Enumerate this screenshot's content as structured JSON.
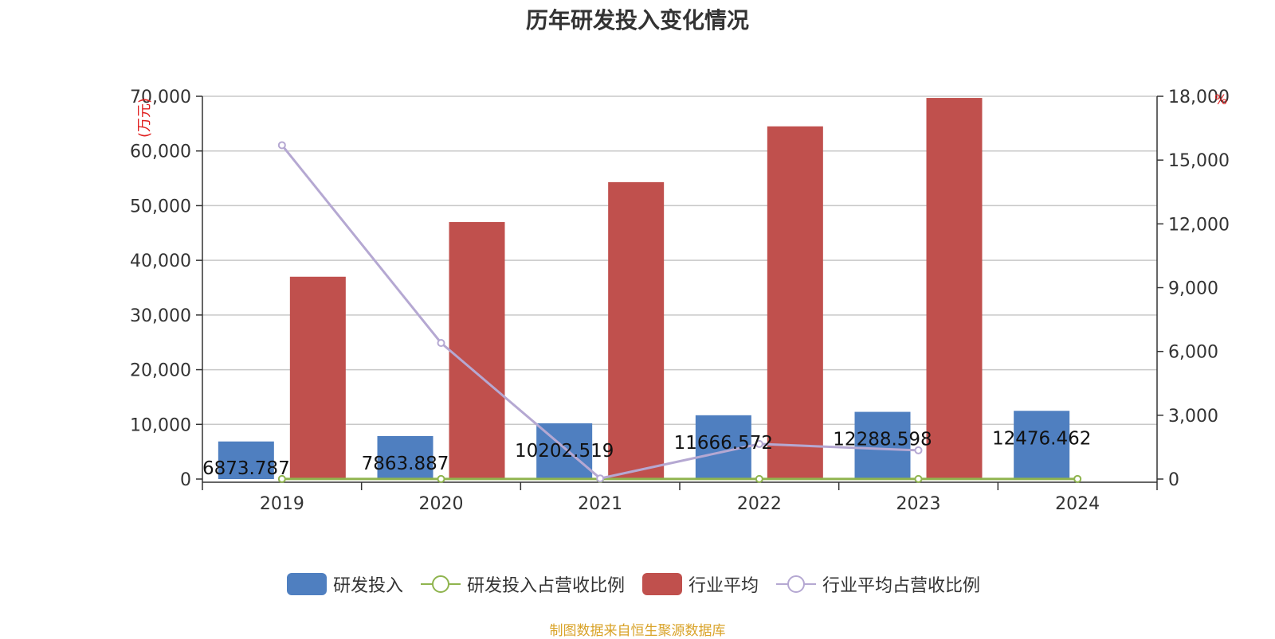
{
  "title": "历年研发投入变化情况",
  "source": "制图数据来自恒生聚源数据库",
  "colors": {
    "rd_investment": "#4f7fc0",
    "rd_ratio": "#8fb44e",
    "industry_avg": "#c0504d",
    "industry_ratio": "#b5a8d2",
    "source_text": "#d9a329"
  },
  "legend": [
    {
      "label": "研发投入",
      "type": "bar",
      "color": "#4f7fc0"
    },
    {
      "label": "研发投入占营收比例",
      "type": "line",
      "color": "#8fb44e"
    },
    {
      "label": "行业平均",
      "type": "bar",
      "color": "#c0504d"
    },
    {
      "label": "行业平均占营收比例",
      "type": "line",
      "color": "#b5a8d2"
    }
  ],
  "chart_data": {
    "type": "bar",
    "categories": [
      "2019",
      "2020",
      "2021",
      "2022",
      "2023",
      "2024"
    ],
    "left_axis": {
      "unit_label": "(万元)",
      "ylim": [
        0,
        70000
      ],
      "ticks": [
        "0",
        "10,000",
        "20,000",
        "30,000",
        "40,000",
        "50,000",
        "60,000",
        "70,000"
      ]
    },
    "right_axis": {
      "unit_label": "%",
      "ylim": [
        0,
        18000
      ],
      "ticks": [
        "0",
        "3,000",
        "6,000",
        "9,000",
        "12,000",
        "15,000",
        "18,000"
      ]
    },
    "series": [
      {
        "name": "研发投入",
        "kind": "bar",
        "axis": "left",
        "values": [
          6873.787,
          7863.887,
          10202.519,
          11666.572,
          12288.598,
          12476.462
        ],
        "data_labels": [
          "6873.787",
          "7863.887",
          "10202.519",
          "11666.572",
          "12288.598",
          "12476.462"
        ]
      },
      {
        "name": "研发投入占营收比例",
        "kind": "line",
        "axis": "right",
        "values": [
          3.5,
          4.0,
          4.8,
          5.2,
          5.6,
          5.9
        ]
      },
      {
        "name": "行业平均",
        "kind": "bar",
        "axis": "left",
        "values": [
          37000,
          47000,
          54300,
          64500,
          69700,
          null
        ]
      },
      {
        "name": "行业平均占营收比例",
        "kind": "line",
        "axis": "right",
        "values": [
          15700,
          6400,
          30,
          1650,
          1350,
          null
        ]
      }
    ],
    "grid": true
  }
}
